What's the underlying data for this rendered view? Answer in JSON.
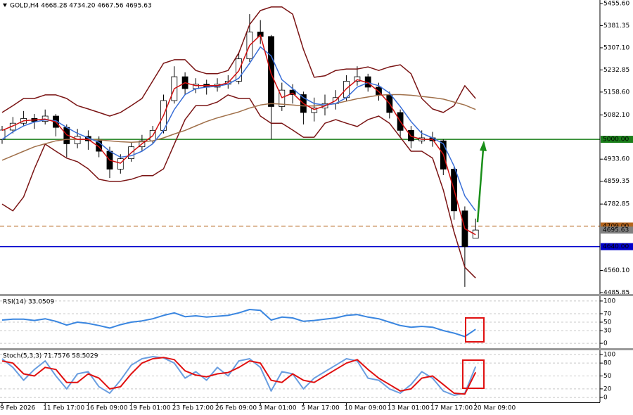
{
  "chart_data": [
    {
      "type": "candlestick",
      "title": "GOLD,H4 4668.28 4734.20 4667.56 4695.63",
      "categories": [
        "9 Feb 2026",
        null,
        null,
        null,
        "11 Feb 17:00",
        null,
        null,
        null,
        "16 Feb 09:00",
        null,
        null,
        null,
        "19 Feb 01:00",
        null,
        null,
        null,
        "23 Feb 17:00",
        null,
        null,
        null,
        "26 Feb 09:00",
        null,
        null,
        null,
        "3 Mar 01:00",
        null,
        null,
        null,
        "5 Mar 17:00",
        null,
        null,
        null,
        "10 Mar 09:00",
        null,
        null,
        null,
        "13 Mar 01:00",
        null,
        null,
        null,
        "17 Mar 17:00",
        null,
        null,
        null,
        "20 Mar 09:00"
      ],
      "open": [
        5000,
        5031,
        5054,
        5070,
        5060,
        5078,
        5040,
        4985,
        5010,
        4995,
        4960,
        4900,
        4935,
        4975,
        4995,
        5030,
        5130,
        5210,
        5170,
        5185,
        5175,
        5185,
        5195,
        5270,
        5360,
        5345,
        5110,
        5165,
        5150,
        5090,
        5105,
        5120,
        5140,
        5195,
        5210,
        5175,
        5150,
        5090,
        5030,
        4995,
        5005,
        4995,
        4900,
        4760,
        4668.28
      ],
      "high": [
        5045,
        5075,
        5095,
        5085,
        5100,
        5085,
        5050,
        5035,
        5030,
        5010,
        4975,
        4950,
        4990,
        5015,
        5045,
        5150,
        5245,
        5225,
        5205,
        5200,
        5205,
        5215,
        5290,
        5420,
        5400,
        5350,
        5190,
        5185,
        5160,
        5140,
        5150,
        5165,
        5215,
        5245,
        5220,
        5190,
        5160,
        5100,
        5045,
        5030,
        5025,
        5000,
        4910,
        4775,
        4734.2
      ],
      "low": [
        4985,
        5020,
        5045,
        5035,
        5050,
        5010,
        4940,
        4970,
        4965,
        4940,
        4870,
        4885,
        4925,
        4960,
        4985,
        5020,
        5120,
        5150,
        5155,
        5150,
        5160,
        5170,
        5185,
        5260,
        5320,
        5000,
        5095,
        5120,
        5050,
        5060,
        5080,
        5100,
        5130,
        5180,
        5160,
        5130,
        5070,
        5005,
        4970,
        4985,
        4975,
        4880,
        4730,
        4505,
        4667.56
      ],
      "close": [
        5031,
        5054,
        5070,
        5060,
        5078,
        5040,
        4985,
        5010,
        4995,
        4960,
        4900,
        4935,
        4975,
        4995,
        5030,
        5130,
        5210,
        5170,
        5185,
        5175,
        5185,
        5195,
        5270,
        5360,
        5345,
        5110,
        5165,
        5150,
        5090,
        5105,
        5120,
        5140,
        5195,
        5210,
        5175,
        5150,
        5090,
        5030,
        4995,
        5005,
        4995,
        4900,
        4760,
        4640,
        4695.63
      ],
      "up_color": "#ffffff",
      "down_color": "#000000",
      "series": [
        {
          "color": "#7a1414",
          "values": [
            5090,
            5113,
            5137,
            5137,
            5149,
            5149,
            5137,
            5113,
            5102,
            5090,
            5078,
            5090,
            5113,
            5137,
            5196,
            5255,
            5267,
            5267,
            5231,
            5220,
            5220,
            5231,
            5290,
            5385,
            5432,
            5444,
            5444,
            5420,
            5302,
            5208,
            5213,
            5231,
            5236,
            5236,
            5243,
            5231,
            5243,
            5250,
            5220,
            5137,
            5102,
            5090,
            5113,
            5180,
            5137
          ]
        },
        {
          "color": "#7a1414",
          "values": [
            4783,
            4760,
            4807,
            4901,
            4984,
            4960,
            4937,
            4925,
            4901,
            4866,
            4859,
            4859,
            4866,
            4878,
            4878,
            4901,
            4984,
            5066,
            5113,
            5113,
            5125,
            5149,
            5137,
            5137,
            5078,
            5054,
            5054,
            5031,
            5007,
            5007,
            5054,
            5066,
            5054,
            5043,
            5066,
            5078,
            5054,
            5007,
            4960,
            4960,
            4937,
            4830,
            4689,
            4571,
            4535
          ]
        },
        {
          "color": "#a0704a",
          "values": [
            4930,
            4945,
            4960,
            4975,
            4985,
            4995,
            5000,
            5000,
            5000,
            4998,
            4995,
            4992,
            4990,
            4992,
            4995,
            5005,
            5018,
            5030,
            5045,
            5060,
            5072,
            5082,
            5092,
            5105,
            5115,
            5120,
            5118,
            5115,
            5112,
            5112,
            5115,
            5120,
            5128,
            5136,
            5142,
            5148,
            5150,
            5150,
            5148,
            5144,
            5140,
            5135,
            5125,
            5115,
            5100
          ]
        },
        {
          "color": "#3a6fd8",
          "values": [
            5000,
            5025,
            5045,
            5058,
            5065,
            5062,
            5040,
            5020,
            5005,
            4990,
            4960,
            4940,
            4945,
            4960,
            4985,
            5030,
            5100,
            5150,
            5170,
            5175,
            5178,
            5185,
            5205,
            5255,
            5310,
            5280,
            5200,
            5170,
            5140,
            5120,
            5115,
            5120,
            5140,
            5175,
            5190,
            5180,
            5155,
            5110,
            5060,
            5020,
            5005,
            4985,
            4910,
            4810,
            4760
          ]
        },
        {
          "color": "#d01010",
          "values": [
            5030,
            5045,
            5062,
            5065,
            5068,
            5058,
            5015,
            5000,
            5000,
            4975,
            4930,
            4920,
            4955,
            4985,
            5012,
            5080,
            5170,
            5190,
            5180,
            5180,
            5180,
            5190,
            5230,
            5315,
            5350,
            5220,
            5140,
            5155,
            5120,
            5100,
            5112,
            5130,
            5170,
            5200,
            5190,
            5160,
            5120,
            5060,
            5010,
            5000,
            5000,
            4950,
            4830,
            4700,
            4680
          ]
        }
      ],
      "levels": [
        {
          "value": 5000,
          "label": "5000.00",
          "color": "#1a7f1a",
          "style": "solid"
        },
        {
          "value": 4709,
          "label": "4709.00",
          "color": "#b5651d",
          "style": "dashed"
        },
        {
          "value": 4695.63,
          "label": "4695.63",
          "color": "#808080",
          "style": "none"
        },
        {
          "value": 4640,
          "label": "4640.00",
          "color": "#0000cc",
          "style": "solid"
        }
      ],
      "ylim": [
        4481.1,
        5467.4
      ],
      "yticks": [
        {
          "value": 5455.6,
          "label": "5455.60"
        },
        {
          "value": 5381.35,
          "label": "5381.35"
        },
        {
          "value": 5307.1,
          "label": "5307.10"
        },
        {
          "value": 5232.85,
          "label": "5232.85"
        },
        {
          "value": 5158.6,
          "label": "5158.60"
        },
        {
          "value": 5082.1,
          "label": "5082.10"
        },
        {
          "value": 4933.6,
          "label": "4933.60"
        },
        {
          "value": 4859.35,
          "label": "4859.35"
        },
        {
          "value": 4782.85,
          "label": "4782.85"
        },
        {
          "value": 4560.1,
          "label": "4560.10"
        },
        {
          "value": 4485.85,
          "label": "4485.85"
        }
      ]
    },
    {
      "type": "line",
      "title": "RSI(14) 33.0509",
      "series": [
        {
          "color": "#3a86e0",
          "values": [
            55,
            57,
            57,
            54,
            58,
            52,
            43,
            50,
            47,
            42,
            36,
            44,
            50,
            53,
            58,
            66,
            72,
            63,
            65,
            62,
            64,
            66,
            72,
            80,
            78,
            55,
            62,
            60,
            52,
            54,
            57,
            60,
            66,
            68,
            62,
            58,
            50,
            42,
            38,
            40,
            38,
            30,
            24,
            16,
            33.0509
          ]
        }
      ],
      "ylim": [
        -11.5,
        111.5
      ],
      "yticks": [
        0,
        30,
        50,
        70,
        100
      ]
    },
    {
      "type": "line",
      "title": "Stoch(5,3,3) 71.7576 58.5029",
      "series": [
        {
          "color": "#6a9ee0",
          "values": [
            90,
            70,
            40,
            65,
            85,
            50,
            20,
            55,
            60,
            25,
            10,
            40,
            75,
            90,
            95,
            92,
            80,
            45,
            60,
            40,
            70,
            50,
            85,
            90,
            70,
            15,
            60,
            55,
            20,
            45,
            60,
            75,
            90,
            85,
            45,
            40,
            20,
            10,
            30,
            60,
            45,
            15,
            5,
            10,
            71.7576
          ]
        },
        {
          "color": "#e01010",
          "values": [
            85,
            80,
            55,
            50,
            70,
            65,
            35,
            35,
            55,
            45,
            20,
            25,
            55,
            80,
            90,
            93,
            88,
            62,
            52,
            48,
            55,
            58,
            70,
            85,
            80,
            40,
            35,
            55,
            40,
            35,
            50,
            65,
            80,
            88,
            65,
            45,
            30,
            15,
            20,
            45,
            50,
            30,
            10,
            8,
            58.5029
          ]
        }
      ],
      "ylim": [
        -11.3,
        109.7
      ],
      "yticks": [
        0,
        20,
        50,
        80,
        100
      ]
    }
  ]
}
